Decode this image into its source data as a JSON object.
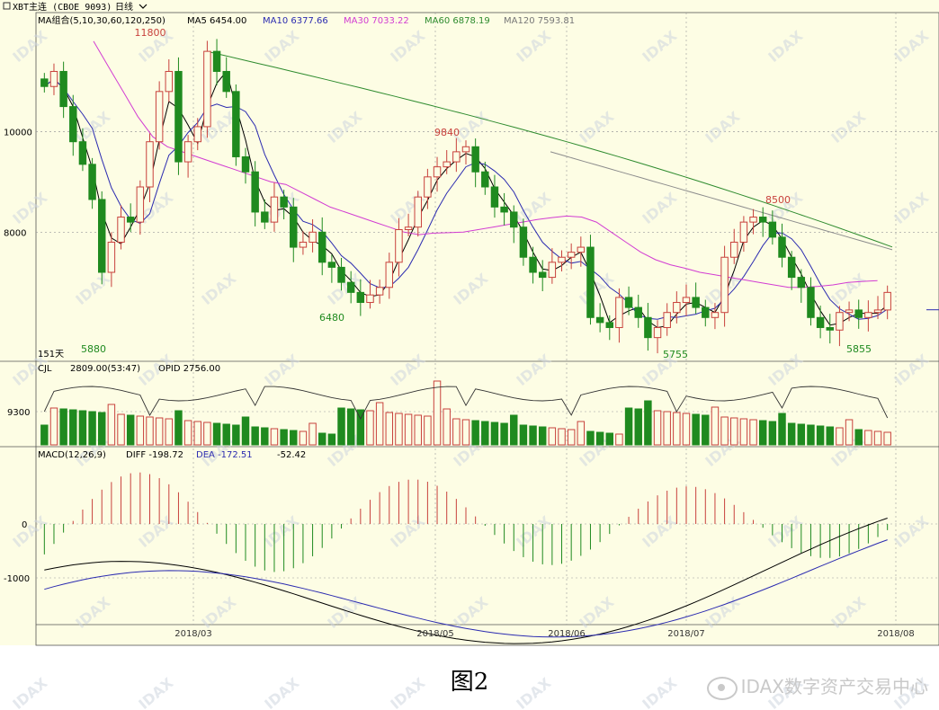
{
  "header": {
    "app_icon": "menu-square-icon",
    "symbol": "XBT主连 (CBOE 9093)",
    "period": "日线"
  },
  "caption": "图2",
  "watermark": "IDAX",
  "source_watermark": "IDAX数字资产交易中心",
  "colors": {
    "background": "#fdfde4",
    "up": "#c8413c",
    "down": "#1f8a1f",
    "ma5": "#000000",
    "ma10": "#2b2bb0",
    "ma30": "#d23cd2",
    "ma60": "#2e8b2e",
    "ma120": "#8c8c8c",
    "grid": "#9a9a9a"
  },
  "chart_data": [
    {
      "type": "candlestick",
      "panel": "price",
      "indicator_label": "MA组合(5,10,30,60,120,250)",
      "legend": [
        {
          "label": "MA5 6454.00",
          "color": "#000000"
        },
        {
          "label": "MA10 6377.66",
          "color": "#2b2bb0"
        },
        {
          "label": "MA30 7033.22",
          "color": "#d23cd2"
        },
        {
          "label": "MA60 6878.19",
          "color": "#2e8b2e"
        },
        {
          "label": "MA120 7593.81",
          "color": "#8c8c8c"
        }
      ],
      "y_ticks": [
        10000,
        8000
      ],
      "ylim": [
        5500,
        12300
      ],
      "day_count_label": "151天",
      "x_ticks": [
        "2018/03",
        "2018/05",
        "2018/06",
        "2018/07",
        "2018/08"
      ],
      "annotations": [
        "11800",
        "9840",
        "8500",
        "6480",
        "5880",
        "5755",
        "5855"
      ],
      "close": [
        10900,
        11200,
        10500,
        9800,
        9350,
        8650,
        7200,
        7800,
        8300,
        8200,
        8900,
        9800,
        10800,
        11200,
        9400,
        9800,
        10100,
        11600,
        11200,
        10800,
        9500,
        9200,
        8400,
        8200,
        8700,
        8500,
        7700,
        7800,
        8000,
        7400,
        7300,
        7000,
        6800,
        6600,
        6750,
        6900,
        7400,
        8050,
        8100,
        8700,
        9100,
        9300,
        9400,
        9600,
        9700,
        9200,
        8900,
        8500,
        8400,
        8100,
        7500,
        7200,
        7100,
        7400,
        7500,
        7600,
        7700,
        6300,
        6200,
        6100,
        6700,
        6500,
        6300,
        5900,
        6100,
        6400,
        6600,
        6700,
        6500,
        6300,
        6400,
        7500,
        7800,
        8200,
        8300,
        8200,
        7900,
        7500,
        7100,
        6900,
        6300,
        6100,
        6050,
        6400,
        6450,
        6300,
        6400,
        6450,
        6800
      ],
      "series_ma30": [
        11800,
        11300,
        10800,
        10300,
        9900,
        9700,
        9600,
        9500,
        9400,
        9300,
        9200,
        9100,
        9000,
        8950,
        8800,
        8650,
        8500,
        8400,
        8300,
        8200,
        8100,
        8000,
        7950,
        7980,
        7990,
        8000,
        8050,
        8100,
        8150,
        8200,
        8250,
        8290,
        8320,
        8300,
        8200,
        8000,
        7800,
        7600,
        7450,
        7350,
        7280,
        7200,
        7150,
        7100,
        7050,
        7000,
        6950,
        6900,
        6900,
        6920,
        6950,
        7000,
        7020,
        7033
      ],
      "volume_panel": {
        "indicator_label": "CJL",
        "value_label": "2809.00(53:47)",
        "opid_label": "OPID 2756.00",
        "y_tick": 9300
      },
      "macd_panel": {
        "indicator_label": "MACD(12,26,9)",
        "diff_label": "DIFF -198.72",
        "dea_label": "DEA -172.51",
        "macd_value": "-52.42",
        "y_ticks": [
          0,
          -1000
        ]
      }
    }
  ]
}
